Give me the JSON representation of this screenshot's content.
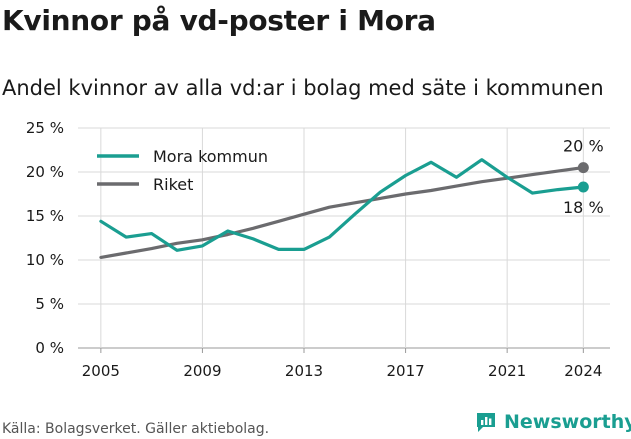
{
  "title": "Kvinnor på vd-poster i Mora",
  "subtitle": "Andel kvinnor av alla vd:ar i bolag med säte i kommunen",
  "source": "Källa: Bolagsverket. Gäller aktiebolag.",
  "brand": "Newsworthy",
  "colors": {
    "mora": "#1a9e91",
    "riket": "#6b6b6e",
    "grid": "#d9d9d9",
    "brand": "#1a9e91"
  },
  "chart_data": {
    "type": "line",
    "x": [
      2005,
      2006,
      2007,
      2008,
      2009,
      2010,
      2011,
      2012,
      2013,
      2014,
      2015,
      2016,
      2017,
      2018,
      2019,
      2020,
      2021,
      2022,
      2023,
      2024
    ],
    "x_ticks": [
      2005,
      2009,
      2013,
      2017,
      2021,
      2024
    ],
    "y_ticks": [
      0,
      5,
      10,
      15,
      20,
      25
    ],
    "y_tick_labels": [
      "0 %",
      "5 %",
      "10 %",
      "15 %",
      "20 %",
      "25 %"
    ],
    "ylim": [
      0,
      25
    ],
    "grid": true,
    "legend_position": "top-left",
    "series": [
      {
        "name": "Mora kommun",
        "color": "#1a9e91",
        "values": [
          14.4,
          12.6,
          13.0,
          11.1,
          11.6,
          13.3,
          12.4,
          11.2,
          11.2,
          12.6,
          15.2,
          17.7,
          19.6,
          21.1,
          19.4,
          21.4,
          19.4,
          17.6,
          18.0,
          18.3
        ],
        "end_label": "18 %"
      },
      {
        "name": "Riket",
        "color": "#6b6b6e",
        "values": [
          10.3,
          10.8,
          11.3,
          11.9,
          12.3,
          12.9,
          13.6,
          14.4,
          15.2,
          16.0,
          16.5,
          17.0,
          17.5,
          17.9,
          18.4,
          18.9,
          19.3,
          19.7,
          20.1,
          20.5
        ],
        "end_label": "20 %"
      }
    ]
  }
}
